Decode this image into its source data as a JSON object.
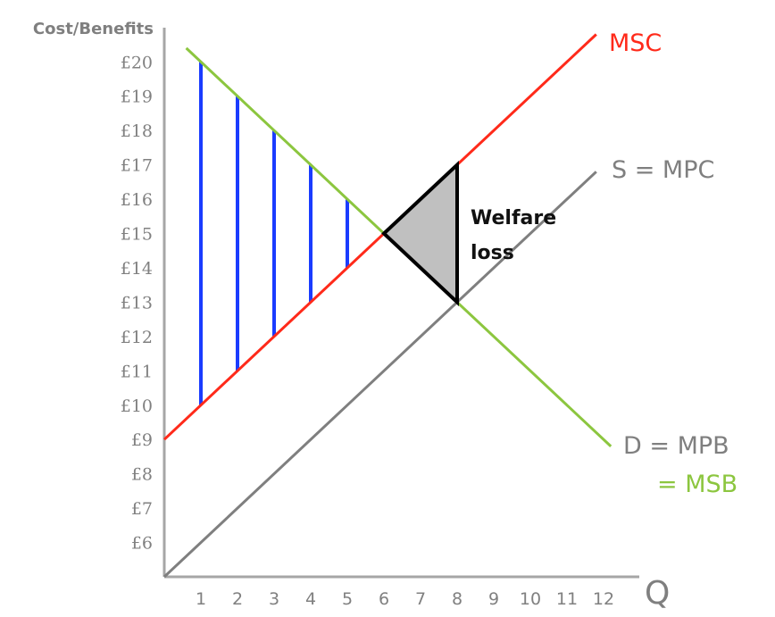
{
  "chart_data": {
    "type": "line",
    "title": "",
    "xlabel": "Q",
    "ylabel": "Cost/Benefits",
    "x_ticks": [
      "1",
      "2",
      "3",
      "4",
      "5",
      "6",
      "7",
      "8",
      "9",
      "10",
      "11",
      "12"
    ],
    "x_tick_highlight": "8",
    "y_ticks": [
      "£6",
      "£7",
      "£8",
      "£9",
      "£10",
      "£11",
      "£12",
      "£13",
      "£14",
      "£15",
      "£16",
      "£17",
      "£18",
      "£19",
      "£20"
    ],
    "ylim": [
      5,
      21
    ],
    "xlim": [
      0,
      13
    ],
    "grid": false,
    "series": [
      {
        "name": "MSC",
        "label": "MSC",
        "color": "#ff2a1a",
        "x": [
          0,
          11.8
        ],
        "y": [
          9,
          20.8
        ]
      },
      {
        "name": "S = MPC",
        "label": "S = MPC",
        "color": "#7f7f7f",
        "x": [
          0,
          11.8
        ],
        "y": [
          5,
          16.8
        ]
      },
      {
        "name": "D = MPB = MSB",
        "label_line1": "D = MPB",
        "label_line2": "= MSB",
        "color": "#8cc63f",
        "x": [
          0.6,
          12.2
        ],
        "y": [
          20.4,
          8.8
        ]
      }
    ],
    "external_benefit_bars": [
      {
        "q": 1,
        "from": 10,
        "to": 20
      },
      {
        "q": 2,
        "from": 11,
        "to": 19
      },
      {
        "q": 3,
        "from": 12,
        "to": 18
      },
      {
        "q": 4,
        "from": 13,
        "to": 17
      },
      {
        "q": 5,
        "from": 14,
        "to": 16
      }
    ],
    "bar_color": "#1a3cff",
    "welfare_loss_triangle": {
      "points": [
        [
          6,
          15
        ],
        [
          8,
          17
        ],
        [
          8,
          13
        ]
      ],
      "fill": "#c0c0c0",
      "stroke": "#000000",
      "label_line1": "Welfare",
      "label_line2": "loss"
    }
  }
}
